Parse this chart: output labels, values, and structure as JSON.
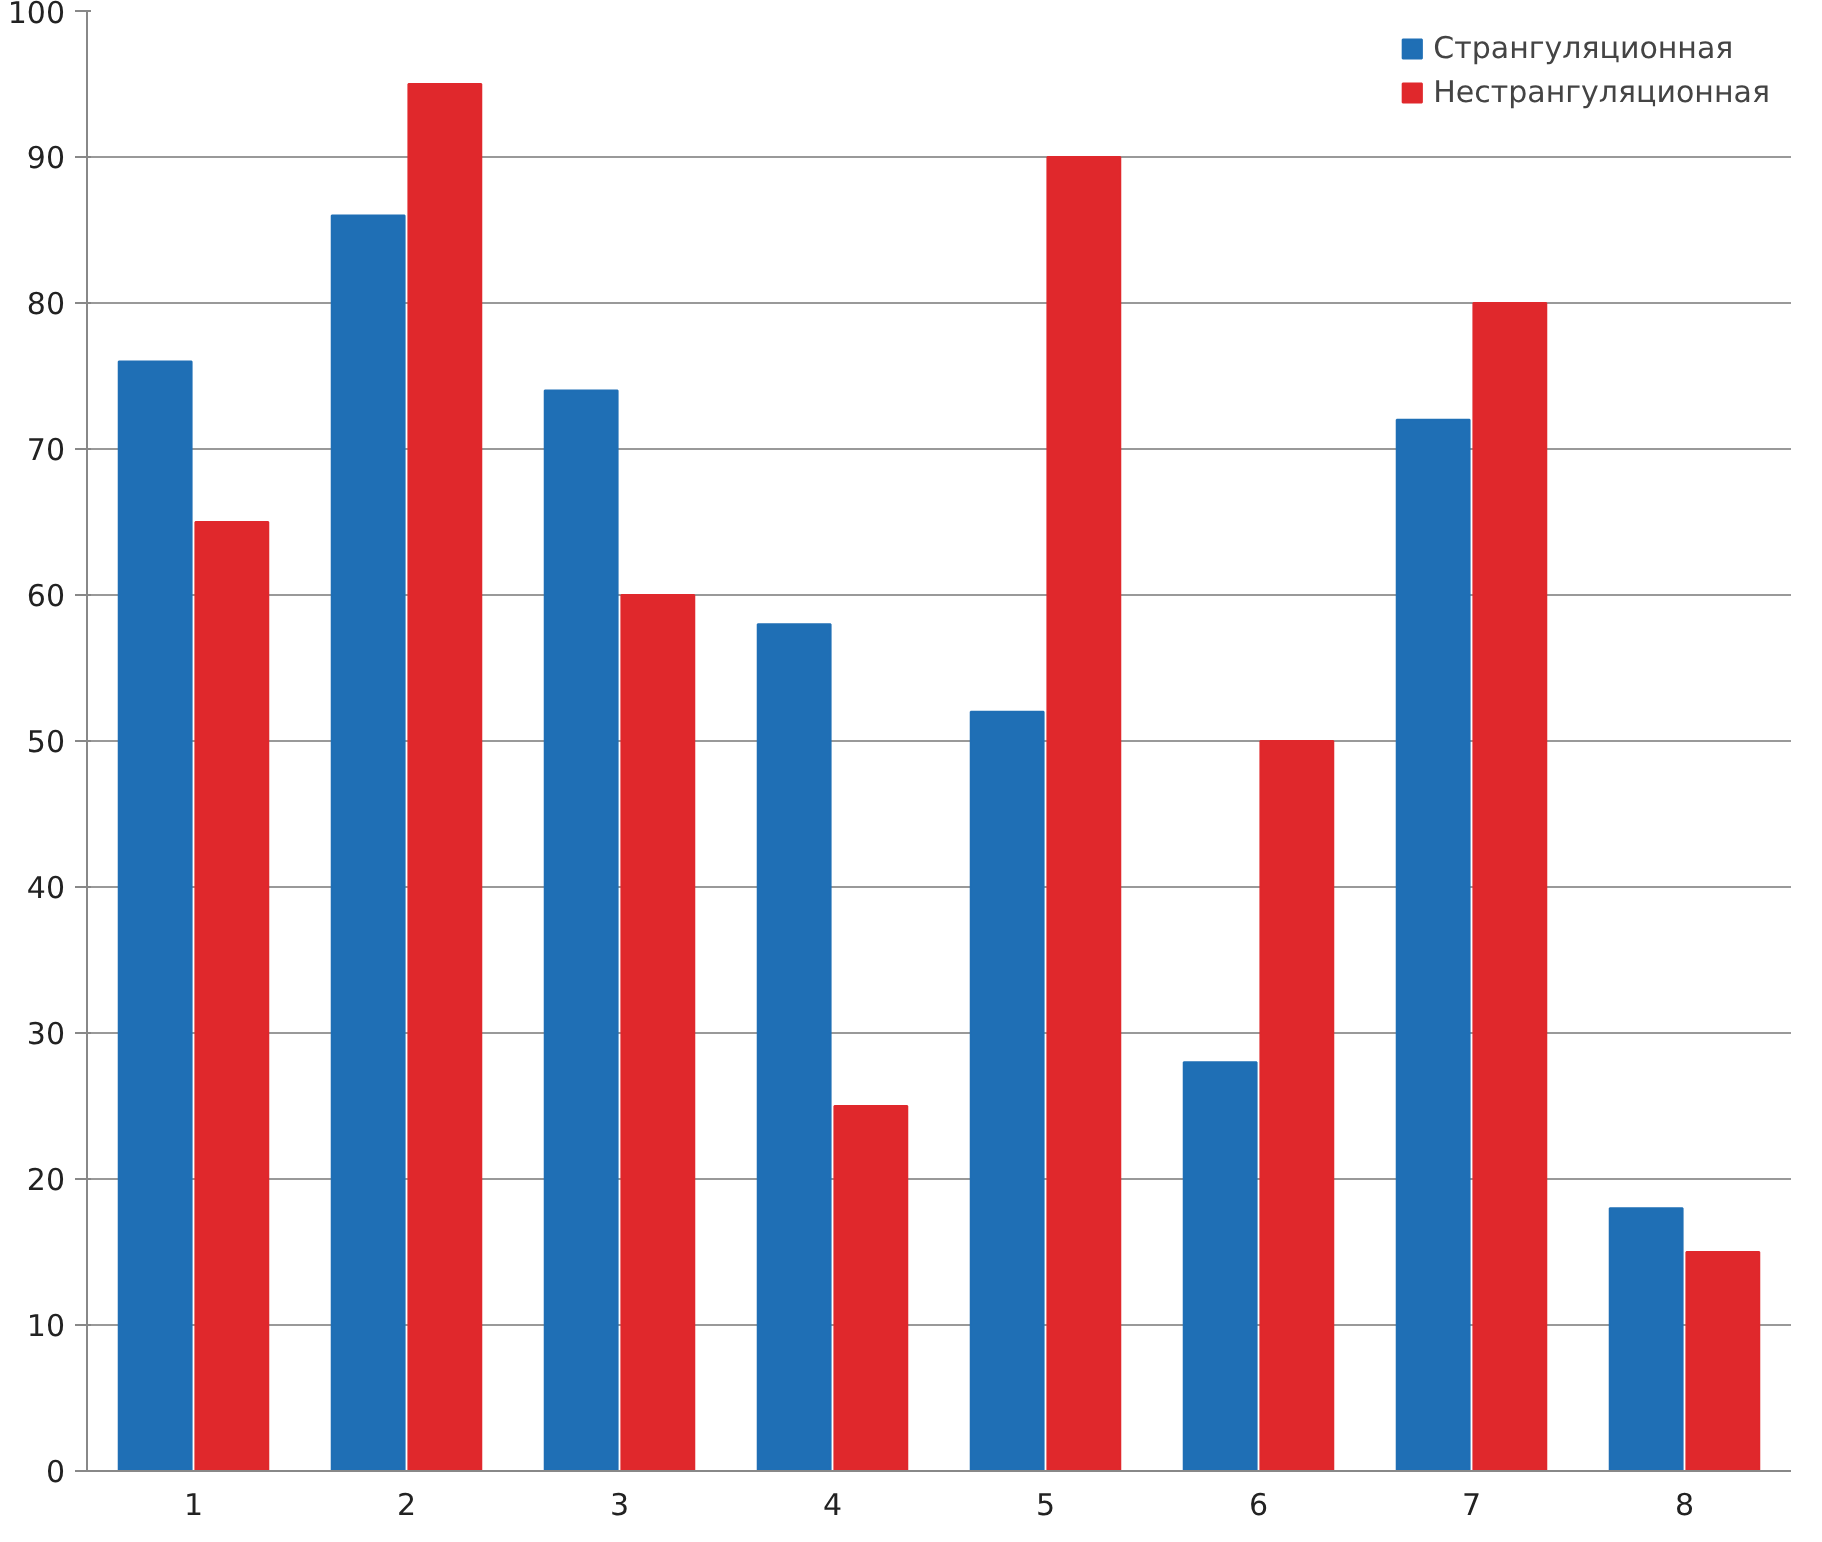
{
  "chart_data": {
    "type": "bar",
    "categories": [
      "1",
      "2",
      "3",
      "4",
      "5",
      "6",
      "7",
      "8"
    ],
    "series": [
      {
        "name": "Странгуляционная",
        "color": "#1f6fb5",
        "values": [
          76,
          86,
          74,
          58,
          52,
          28,
          72,
          18
        ]
      },
      {
        "name": "Нестрангуляционная",
        "color": "#e0282c",
        "values": [
          65,
          95,
          60,
          25,
          90,
          50,
          80,
          15
        ]
      }
    ],
    "ylim": [
      0,
      100
    ],
    "yticks": [
      0,
      10,
      20,
      30,
      40,
      50,
      60,
      70,
      80,
      90,
      100
    ],
    "grid": "y",
    "legend": "top right"
  }
}
